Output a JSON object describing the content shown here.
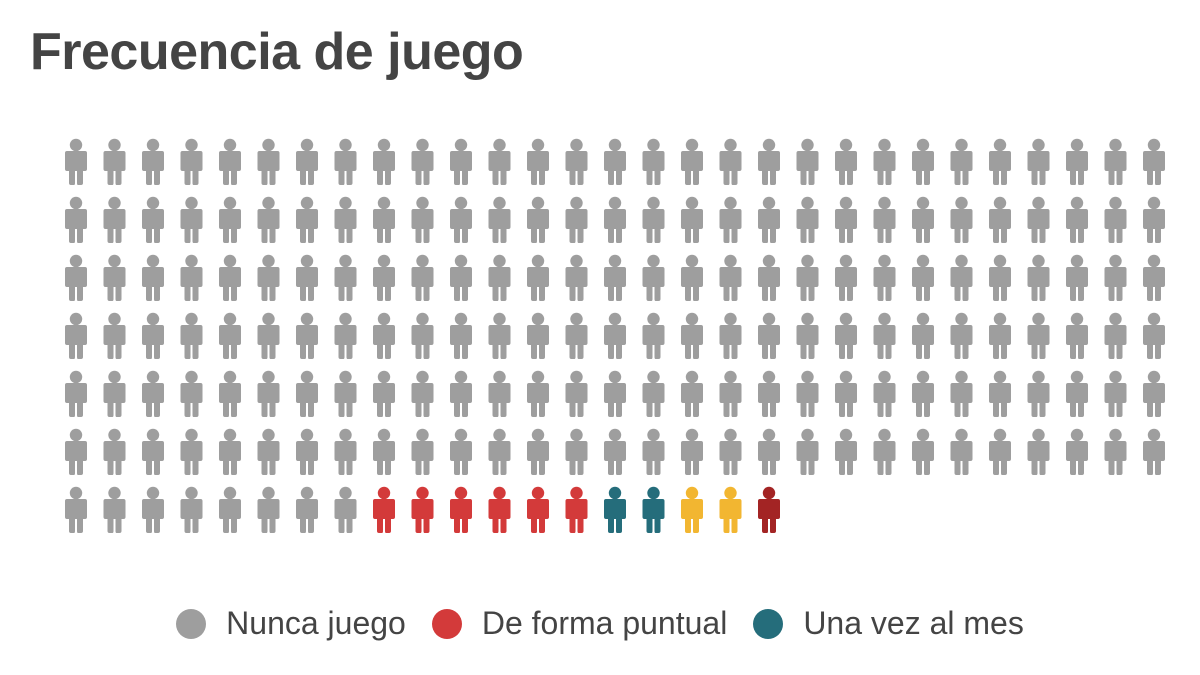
{
  "title": "Frecuencia de juego",
  "chart_data": {
    "type": "pictogram",
    "title": "Frecuencia de juego",
    "columns": 29,
    "order": "row-major",
    "series": [
      {
        "name": "Nunca juego",
        "count": 182,
        "color": "#9e9e9e"
      },
      {
        "name": "De forma puntual",
        "count": 6,
        "color": "#d33a3a"
      },
      {
        "name": "Una vez al mes",
        "count": 2,
        "color": "#256d7b"
      },
      {
        "name": "",
        "count": 2,
        "color": "#f2b631"
      },
      {
        "name": "",
        "count": 1,
        "color": "#a32424"
      }
    ],
    "legend": [
      {
        "label": "Nunca juego",
        "color": "#9e9e9e"
      },
      {
        "label": "De forma puntual",
        "color": "#d33a3a"
      },
      {
        "label": "Una vez al mes",
        "color": "#256d7b"
      }
    ],
    "legend_position": "bottom"
  }
}
